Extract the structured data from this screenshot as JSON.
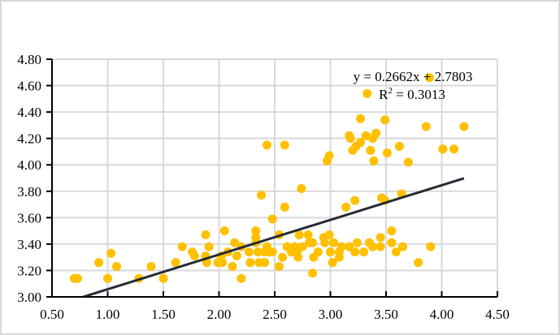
{
  "chart_data": {
    "type": "scatter",
    "title": "",
    "xlabel": "",
    "ylabel": "",
    "xlim": [
      0.5,
      4.5
    ],
    "ylim": [
      3.0,
      4.8
    ],
    "grid": true,
    "legend": "none",
    "x_ticks": [
      "0.50",
      "1.00",
      "1.50",
      "2.00",
      "2.50",
      "3.00",
      "3.50",
      "4.00",
      "4.50"
    ],
    "y_ticks": [
      "3.00",
      "3.20",
      "3.40",
      "3.60",
      "3.80",
      "4.00",
      "4.20",
      "4.40",
      "4.60",
      "4.80"
    ],
    "colors": {
      "points": "#FFC000",
      "trendline": "#262B33",
      "grid": "#D9D9D9"
    },
    "trendline": {
      "slope": 0.2662,
      "intercept": 2.7803,
      "x_range": [
        0.78,
        4.2
      ],
      "equation_label": "y = 0.2662x + 2.7803",
      "r2_label_prefix": "R",
      "r2_label_sup": "2",
      "r2_label_value": " = 0.3013"
    },
    "points": [
      [
        0.7,
        3.14
      ],
      [
        0.73,
        3.14
      ],
      [
        0.92,
        3.26
      ],
      [
        1.03,
        3.33
      ],
      [
        1.0,
        3.14
      ],
      [
        1.08,
        3.23
      ],
      [
        1.28,
        3.14
      ],
      [
        1.39,
        3.23
      ],
      [
        1.5,
        3.14
      ],
      [
        1.61,
        3.26
      ],
      [
        1.67,
        3.38
      ],
      [
        1.76,
        3.34
      ],
      [
        1.78,
        3.31
      ],
      [
        1.88,
        3.47
      ],
      [
        1.88,
        3.31
      ],
      [
        1.91,
        3.38
      ],
      [
        1.89,
        3.26
      ],
      [
        1.99,
        3.26
      ],
      [
        2.03,
        3.26
      ],
      [
        2.05,
        3.5
      ],
      [
        2.02,
        3.31
      ],
      [
        2.08,
        3.34
      ],
      [
        2.14,
        3.41
      ],
      [
        2.16,
        3.31
      ],
      [
        2.12,
        3.23
      ],
      [
        2.2,
        3.38
      ],
      [
        2.2,
        3.14
      ],
      [
        2.27,
        3.34
      ],
      [
        2.28,
        3.26
      ],
      [
        2.33,
        3.5
      ],
      [
        2.33,
        3.45
      ],
      [
        2.33,
        3.41
      ],
      [
        2.35,
        3.34
      ],
      [
        2.36,
        3.26
      ],
      [
        2.41,
        3.26
      ],
      [
        2.41,
        3.34
      ],
      [
        2.43,
        3.38
      ],
      [
        2.48,
        3.34
      ],
      [
        2.38,
        3.77
      ],
      [
        2.43,
        4.15
      ],
      [
        2.48,
        3.59
      ],
      [
        2.59,
        4.15
      ],
      [
        2.45,
        3.34
      ],
      [
        2.54,
        3.47
      ],
      [
        2.57,
        3.3
      ],
      [
        2.54,
        3.23
      ],
      [
        2.59,
        3.68
      ],
      [
        2.61,
        3.38
      ],
      [
        2.65,
        3.34
      ],
      [
        2.68,
        3.38
      ],
      [
        2.7,
        3.34
      ],
      [
        2.71,
        3.3
      ],
      [
        2.72,
        3.47
      ],
      [
        2.74,
        3.82
      ],
      [
        2.75,
        3.38
      ],
      [
        2.8,
        3.47
      ],
      [
        2.81,
        3.41
      ],
      [
        2.84,
        3.41
      ],
      [
        2.85,
        3.3
      ],
      [
        2.84,
        3.18
      ],
      [
        2.89,
        3.34
      ],
      [
        2.94,
        3.45
      ],
      [
        2.95,
        3.41
      ],
      [
        2.97,
        4.03
      ],
      [
        2.99,
        4.07
      ],
      [
        2.99,
        3.47
      ],
      [
        3.0,
        3.34
      ],
      [
        3.03,
        3.41
      ],
      [
        3.02,
        3.26
      ],
      [
        3.08,
        3.34
      ],
      [
        3.08,
        3.3
      ],
      [
        3.1,
        3.38
      ],
      [
        3.14,
        3.68
      ],
      [
        3.17,
        3.38
      ],
      [
        3.17,
        4.22
      ],
      [
        3.18,
        4.2
      ],
      [
        3.2,
        4.11
      ],
      [
        3.22,
        3.73
      ],
      [
        3.22,
        3.34
      ],
      [
        3.23,
        4.14
      ],
      [
        3.24,
        3.41
      ],
      [
        3.27,
        4.35
      ],
      [
        3.27,
        4.17
      ],
      [
        3.3,
        3.34
      ],
      [
        3.32,
        4.22
      ],
      [
        3.33,
        4.54
      ],
      [
        3.35,
        3.41
      ],
      [
        3.36,
        4.11
      ],
      [
        3.38,
        3.38
      ],
      [
        3.38,
        4.2
      ],
      [
        3.39,
        4.03
      ],
      [
        3.41,
        4.24
      ],
      [
        3.45,
        3.45
      ],
      [
        3.46,
        3.75
      ],
      [
        3.45,
        3.38
      ],
      [
        3.49,
        4.34
      ],
      [
        3.49,
        3.73
      ],
      [
        3.51,
        4.09
      ],
      [
        3.55,
        3.5
      ],
      [
        3.55,
        3.41
      ],
      [
        3.59,
        3.34
      ],
      [
        3.62,
        4.14
      ],
      [
        3.64,
        3.78
      ],
      [
        3.65,
        3.38
      ],
      [
        3.7,
        4.02
      ],
      [
        3.79,
        3.26
      ],
      [
        3.86,
        4.29
      ],
      [
        3.89,
        4.66
      ],
      [
        3.9,
        3.38
      ],
      [
        4.01,
        4.12
      ],
      [
        4.11,
        4.12
      ],
      [
        4.2,
        4.29
      ]
    ]
  }
}
